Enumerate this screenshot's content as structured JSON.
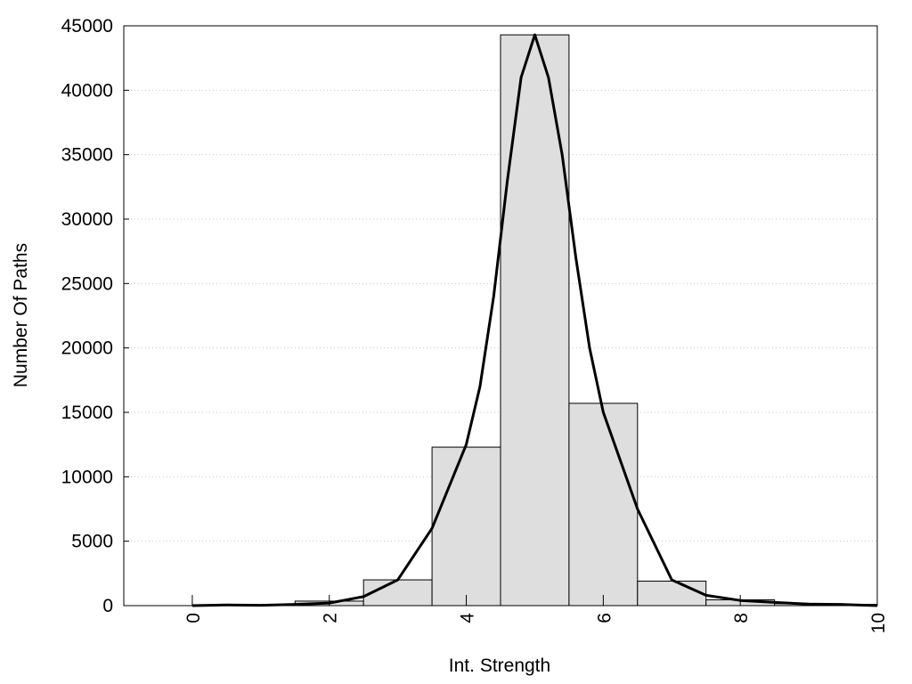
{
  "chart_data": {
    "type": "bar",
    "title": "",
    "xlabel": "Int. Strength",
    "ylabel": "Number Of Paths",
    "xlim": [
      -1,
      10
    ],
    "ylim": [
      0,
      45000
    ],
    "x_ticks": [
      0,
      2,
      4,
      6,
      8,
      10
    ],
    "y_ticks": [
      0,
      5000,
      10000,
      15000,
      20000,
      25000,
      30000,
      35000,
      40000,
      45000
    ],
    "grid": "horizontal-dotted",
    "legend": "none",
    "bins": [
      {
        "left": -0.5,
        "right": 0.5,
        "value": 0
      },
      {
        "left": 0.5,
        "right": 1.5,
        "value": 60
      },
      {
        "left": 1.5,
        "right": 2.5,
        "value": 350
      },
      {
        "left": 2.5,
        "right": 3.5,
        "value": 2000
      },
      {
        "left": 3.5,
        "right": 4.5,
        "value": 12300
      },
      {
        "left": 4.5,
        "right": 5.5,
        "value": 44300
      },
      {
        "left": 5.5,
        "right": 6.5,
        "value": 15700
      },
      {
        "left": 6.5,
        "right": 7.5,
        "value": 1900
      },
      {
        "left": 7.5,
        "right": 8.5,
        "value": 450
      },
      {
        "left": 8.5,
        "right": 9.5,
        "value": 150
      },
      {
        "left": 9.5,
        "right": 10.0,
        "value": 100
      }
    ],
    "curve": {
      "x": [
        0,
        0.5,
        1,
        1.5,
        2,
        2.5,
        3,
        3.5,
        4,
        4.2,
        4.4,
        4.6,
        4.8,
        5,
        5.2,
        5.4,
        5.6,
        5.8,
        6,
        6.5,
        7,
        7.5,
        8,
        8.5,
        9,
        9.5,
        10
      ],
      "y": [
        0,
        50,
        30,
        100,
        200,
        700,
        2000,
        6000,
        12500,
        17000,
        24000,
        33000,
        41000,
        44300,
        41000,
        35000,
        27000,
        20000,
        15000,
        7500,
        2000,
        800,
        400,
        250,
        120,
        80,
        0
      ]
    },
    "colors": {
      "bar_fill": "#dedede",
      "bar_stroke": "#000000",
      "curve": "#000000",
      "grid": "#c8c8c8"
    }
  }
}
